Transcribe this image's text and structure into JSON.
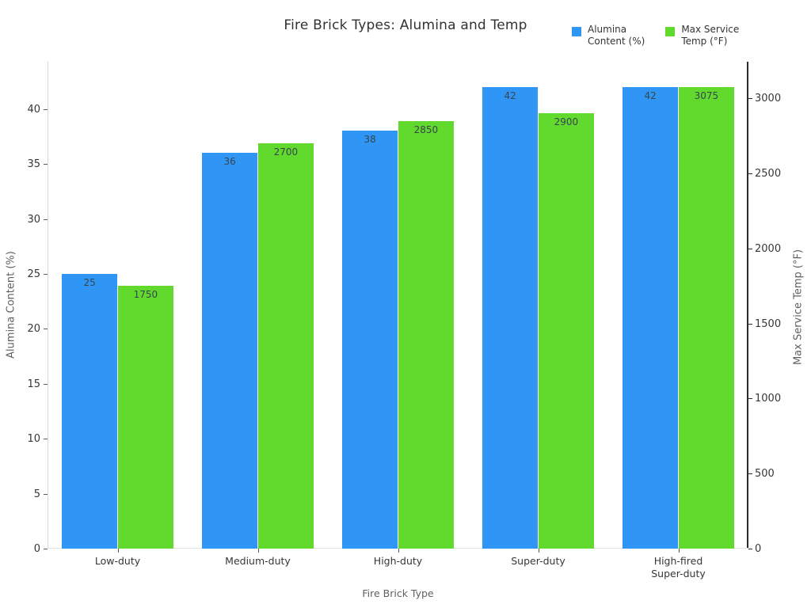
{
  "chart_data": {
    "type": "bar",
    "title": "Fire Brick Types: Alumina and Temp",
    "xlabel": "Fire Brick Type",
    "ylabel_left": "Alumina Content (%)",
    "ylabel_right": "Max Service Temp (°F)",
    "categories": [
      "Low-duty",
      "Medium-duty",
      "High-duty",
      "Super-duty",
      "High-fired\nSuper-duty"
    ],
    "series": [
      {
        "name": "Alumina Content (%)",
        "axis": "left",
        "color": "#3096f5",
        "values": [
          25,
          36,
          38,
          42,
          42
        ]
      },
      {
        "name": "Max Service Temp (°F)",
        "axis": "right",
        "color": "#62d92d",
        "values": [
          1750,
          2700,
          2850,
          2900,
          3075
        ]
      }
    ],
    "y_left": {
      "min": 0,
      "max": 44.3,
      "ticks": [
        0,
        5,
        10,
        15,
        20,
        25,
        30,
        35,
        40
      ]
    },
    "y_right": {
      "min": 0,
      "max": 3244,
      "ticks": [
        0,
        500,
        1000,
        1500,
        2000,
        2500,
        3000
      ]
    },
    "grid": false,
    "bar_labels_position": "inside-top",
    "legend_position": "top-right",
    "legend": [
      {
        "label": "Alumina\nContent (%)",
        "color": "#3096f5"
      },
      {
        "label": "Max Service\nTemp (°F)",
        "color": "#62d92d"
      }
    ]
  }
}
